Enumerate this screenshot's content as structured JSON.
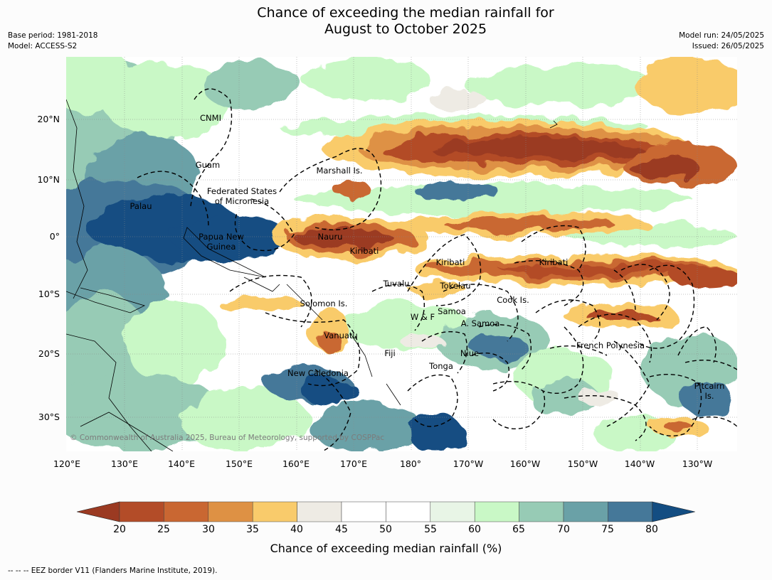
{
  "title_line1": "Chance of exceeding the median rainfall for",
  "title_line2": "August to October 2025",
  "base_period": "Base period: 1981-2018",
  "model": "Model: ACCESS-S2",
  "model_run": "Model run: 24/05/2025",
  "issued": "Issued: 26/05/2025",
  "lat_labels": [
    "20°N",
    "10°N",
    "0°",
    "10°S",
    "20°S",
    "30°S"
  ],
  "lon_labels": [
    "120°E",
    "130°E",
    "140°E",
    "150°E",
    "160°E",
    "170°E",
    "180°",
    "170°W",
    "160°W",
    "150°W",
    "140°W",
    "130°W"
  ],
  "regions": [
    "CNMI",
    "Guam",
    "Marshall Is.",
    "Federated States\nof Micronesia",
    "Palau",
    "Papua New\nGuinea",
    "Nauru",
    "Kiribati",
    "Kiribati",
    "Kiribati",
    "Tuvalu",
    "Tokelau",
    "Cook Is.",
    "Solomon Is.",
    "Samoa",
    "W & F",
    "A. Samoa",
    "Vanuatu",
    "Fiji",
    "Niue",
    "Tonga",
    "French Polynesia",
    "New Caledonia",
    "Pitcairn\nIs."
  ],
  "copyright": "© Commonwealth of Australia 2025, Bureau of Meteorology, supported by COSPPac",
  "colorbar": {
    "ticks": [
      "20",
      "25",
      "30",
      "35",
      "40",
      "45",
      "50",
      "55",
      "60",
      "65",
      "70",
      "75",
      "80"
    ],
    "colors": [
      "#9b3a22",
      "#b34c28",
      "#c96732",
      "#de9144",
      "#f9cb6b",
      "#eeebe4",
      "#ffffff",
      "#ffffff",
      "#e8f5e6",
      "#c9f8c6",
      "#97cbb5",
      "#6aa1a7",
      "#457899",
      "#134d82"
    ],
    "label": "Chance of exceeding median rainfall (%)"
  },
  "eez_note": "-- -- -- EEZ border V11 (Flanders Marine Institute, 2019)."
}
